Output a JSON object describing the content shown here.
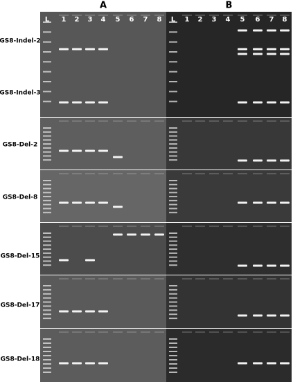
{
  "panels": [
    {
      "label": "A",
      "lanes": [
        "L",
        "1",
        "2",
        "3",
        "4",
        "5",
        "6",
        "7",
        "8"
      ]
    },
    {
      "label": "B",
      "lanes": [
        "L",
        "1",
        "2",
        "3",
        "4",
        "5",
        "6",
        "7",
        "8"
      ]
    }
  ],
  "rows": [
    "GS8-Indel-2",
    "GS8-Indel-3",
    "GS8-Del-2",
    "GS8-Del-8",
    "GS8-Del-15",
    "GS8-Del-17",
    "GS8-Del-18"
  ]
}
